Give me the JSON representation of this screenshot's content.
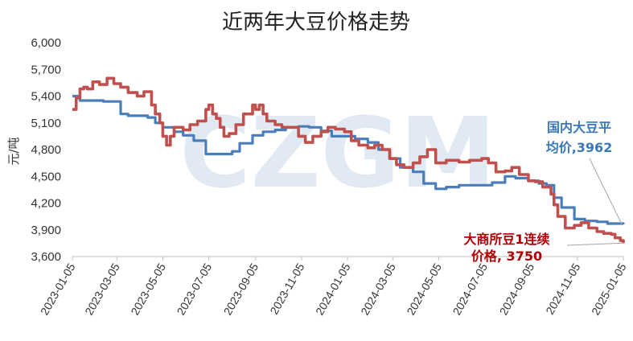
{
  "chart_data": {
    "type": "line",
    "title": "近两年大豆价格走势",
    "ylabel": "元/吨",
    "ylim": [
      3600,
      6000
    ],
    "yticks": [
      3600,
      3900,
      4200,
      4500,
      4800,
      5100,
      5400,
      5700,
      6000
    ],
    "ytick_labels": [
      "3,600",
      "3,900",
      "4,200",
      "4,500",
      "4,800",
      "5,100",
      "5,400",
      "5,700",
      "6,000"
    ],
    "xlim": [
      "2023-01-05",
      "2025-01-05"
    ],
    "xtick_labels": [
      "2023-01-05",
      "2023-03-05",
      "2023-05-05",
      "2023-07-05",
      "2023-09-05",
      "2023-11-05",
      "2024-01-05",
      "2024-03-05",
      "2024-05-05",
      "2024-07-05",
      "2024-09-05",
      "2024-11-05",
      "2025-01-05"
    ],
    "grid": false,
    "watermark": "CZGM",
    "colors": {
      "domestic": "#4a7ebb",
      "dalian": "#c0504d",
      "watermark": "#c9d8ea"
    },
    "annotations": [
      {
        "lines": [
          "国内大豆平",
          "均价,3962"
        ],
        "series": 0,
        "color": "#3b78b8"
      },
      {
        "lines": [
          "大商所豆1连续",
          "价格, 3750"
        ],
        "series": 1,
        "color": "#b30000"
      }
    ],
    "series": [
      {
        "color": "#4a7ebb",
        "x": [
          "2023-01-05",
          "2023-01-15",
          "2023-02-01",
          "2023-02-15",
          "2023-03-01",
          "2023-03-10",
          "2023-03-20",
          "2023-04-01",
          "2023-04-15",
          "2023-04-25",
          "2023-05-05",
          "2023-05-20",
          "2023-06-01",
          "2023-06-15",
          "2023-07-01",
          "2023-07-15",
          "2023-07-25",
          "2023-08-05",
          "2023-08-15",
          "2023-09-01",
          "2023-09-15",
          "2023-10-01",
          "2023-10-15",
          "2023-11-01",
          "2023-11-15",
          "2023-12-01",
          "2023-12-15",
          "2024-01-01",
          "2024-01-15",
          "2024-02-01",
          "2024-02-15",
          "2024-03-01",
          "2024-03-15",
          "2024-04-01",
          "2024-04-15",
          "2024-05-01",
          "2024-05-15",
          "2024-06-01",
          "2024-06-15",
          "2024-07-01",
          "2024-07-15",
          "2024-08-01",
          "2024-08-15",
          "2024-09-01",
          "2024-09-15",
          "2024-09-25",
          "2024-10-05",
          "2024-10-15",
          "2024-11-01",
          "2024-11-15",
          "2024-12-01",
          "2024-12-15",
          "2025-01-05"
        ],
        "y": [
          5400,
          5350,
          5350,
          5340,
          5340,
          5200,
          5180,
          5180,
          5160,
          5100,
          5050,
          5000,
          4960,
          4900,
          4750,
          4750,
          4750,
          4780,
          4870,
          4960,
          5000,
          5020,
          5050,
          5060,
          5050,
          5010,
          4950,
          4950,
          4920,
          4880,
          4800,
          4700,
          4600,
          4550,
          4420,
          4360,
          4380,
          4400,
          4400,
          4400,
          4430,
          4500,
          4480,
          4450,
          4420,
          4400,
          4260,
          4150,
          4020,
          4000,
          3990,
          3970,
          3962
        ]
      },
      {
        "color": "#c0504d",
        "x": [
          "2023-01-05",
          "2023-01-10",
          "2023-01-15",
          "2023-01-20",
          "2023-01-25",
          "2023-02-01",
          "2023-02-10",
          "2023-02-20",
          "2023-03-01",
          "2023-03-10",
          "2023-03-20",
          "2023-04-01",
          "2023-04-10",
          "2023-04-20",
          "2023-04-25",
          "2023-05-01",
          "2023-05-05",
          "2023-05-10",
          "2023-05-15",
          "2023-05-20",
          "2023-06-01",
          "2023-06-10",
          "2023-06-20",
          "2023-07-01",
          "2023-07-05",
          "2023-07-10",
          "2023-07-15",
          "2023-07-20",
          "2023-07-25",
          "2023-08-01",
          "2023-08-10",
          "2023-08-20",
          "2023-09-01",
          "2023-09-05",
          "2023-09-10",
          "2023-09-15",
          "2023-09-20",
          "2023-10-01",
          "2023-10-10",
          "2023-10-20",
          "2023-11-01",
          "2023-11-10",
          "2023-11-20",
          "2023-12-01",
          "2023-12-10",
          "2023-12-20",
          "2024-01-01",
          "2024-01-10",
          "2024-01-20",
          "2024-02-01",
          "2024-02-10",
          "2024-02-20",
          "2024-03-01",
          "2024-03-10",
          "2024-03-20",
          "2024-04-01",
          "2024-04-10",
          "2024-04-20",
          "2024-05-01",
          "2024-05-15",
          "2024-06-01",
          "2024-06-15",
          "2024-07-01",
          "2024-07-10",
          "2024-07-20",
          "2024-08-01",
          "2024-08-10",
          "2024-08-20",
          "2024-09-01",
          "2024-09-10",
          "2024-09-20",
          "2024-10-01",
          "2024-10-05",
          "2024-10-10",
          "2024-10-20",
          "2024-11-01",
          "2024-11-10",
          "2024-11-20",
          "2024-12-01",
          "2024-12-10",
          "2024-12-20",
          "2024-12-25",
          "2025-01-01",
          "2025-01-05"
        ],
        "y": [
          5250,
          5380,
          5480,
          5500,
          5480,
          5560,
          5530,
          5600,
          5540,
          5500,
          5440,
          5400,
          5450,
          5300,
          5200,
          5100,
          4950,
          4850,
          4950,
          5050,
          5020,
          5080,
          5120,
          5250,
          5300,
          5200,
          5150,
          5050,
          4950,
          4980,
          5080,
          5200,
          5300,
          5250,
          5300,
          5200,
          5120,
          5080,
          5050,
          5050,
          4950,
          4880,
          4950,
          5000,
          5050,
          5030,
          5000,
          4900,
          4850,
          4820,
          4850,
          4800,
          4700,
          4630,
          4600,
          4650,
          4720,
          4800,
          4650,
          4680,
          4660,
          4680,
          4700,
          4650,
          4550,
          4560,
          4600,
          4520,
          4450,
          4440,
          4380,
          4300,
          4180,
          4050,
          3920,
          3950,
          3980,
          3920,
          3880,
          3860,
          3850,
          3810,
          3780,
          3750
        ]
      }
    ]
  }
}
